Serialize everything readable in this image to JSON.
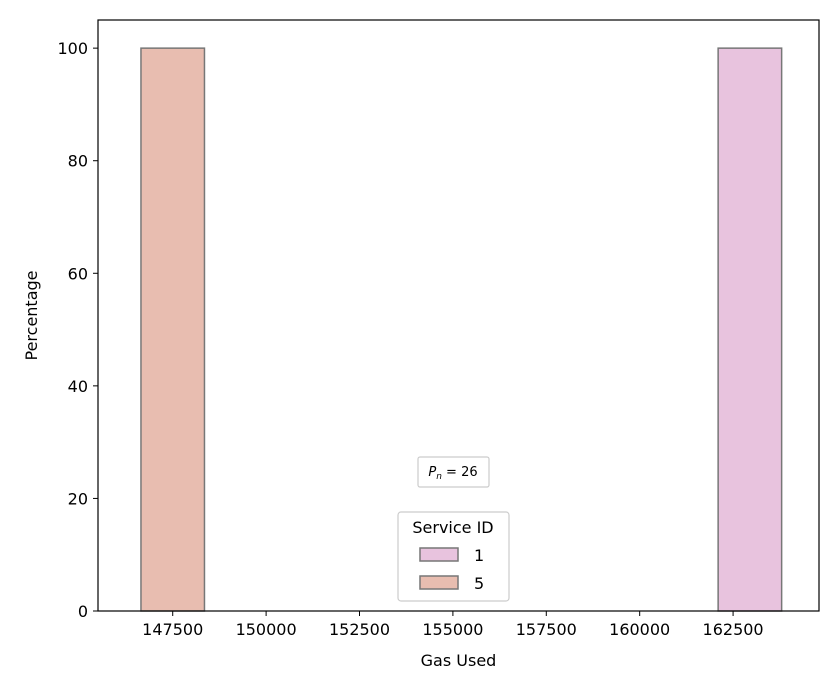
{
  "chart_data": {
    "type": "bar",
    "xlabel": "Gas Used",
    "ylabel": "Percentage",
    "xlim": [
      145500,
      164800
    ],
    "ylim": [
      0,
      105
    ],
    "xticks": [
      147500,
      150000,
      152500,
      155000,
      157500,
      160000,
      162500
    ],
    "xtick_labels": [
      "147500",
      "150000",
      "152500",
      "155000",
      "157500",
      "160000",
      "162500"
    ],
    "yticks": [
      0,
      20,
      40,
      60,
      80,
      100
    ],
    "ytick_labels": [
      "0",
      "20",
      "40",
      "60",
      "80",
      "100"
    ],
    "grid": false,
    "series": [
      {
        "name": "1",
        "color": "#e8c3de",
        "bins": [
          {
            "x0": 162100,
            "x1": 163800,
            "value": 100
          }
        ]
      },
      {
        "name": "5",
        "color": "#e8bdb0",
        "bins": [
          {
            "x0": 146650,
            "x1": 148350,
            "value": 100
          }
        ]
      }
    ],
    "legend": {
      "title": "Service ID",
      "placement": "lower-center",
      "entries": [
        "1",
        "5"
      ]
    },
    "annotation": {
      "text": "P_n = 26",
      "main": "P",
      "sub": "n",
      "rest": " = 26"
    }
  }
}
